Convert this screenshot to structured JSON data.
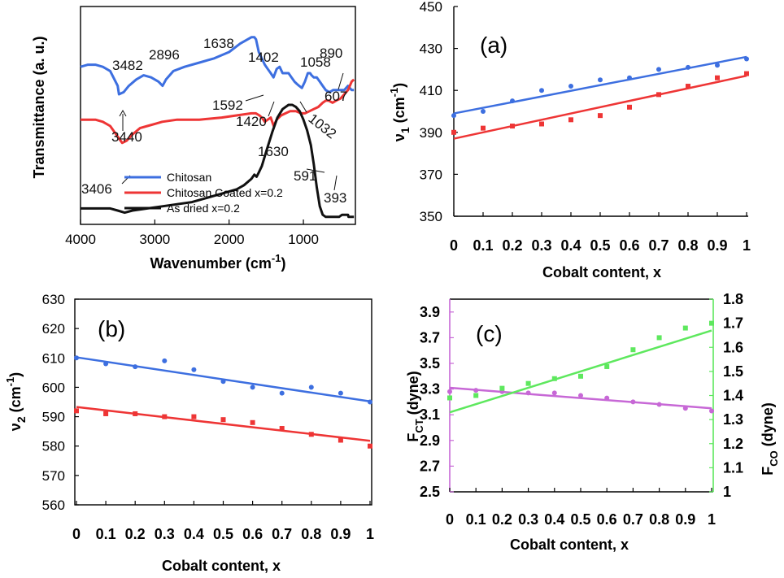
{
  "chart_data": [
    {
      "id": "ftir",
      "type": "line",
      "xlabel": "Wavenumber (cm",
      "xlabel_sup": "-1",
      "xlabel_tail": ")",
      "ylabel": "Transmittance (a. u.)",
      "xlim": [
        4000,
        300
      ],
      "x_ticks": [
        "4000",
        "3000",
        "2000",
        "1000"
      ],
      "x_tick_values": [
        4000,
        3000,
        2000,
        1000
      ],
      "series": [
        {
          "name": "Chitosan",
          "color": "#3d6fe0",
          "x": [
            4000,
            3900,
            3800,
            3700,
            3600,
            3500,
            3482,
            3420,
            3350,
            3250,
            3150,
            3050,
            2950,
            2896,
            2850,
            2750,
            2600,
            2400,
            2200,
            2000,
            1850,
            1700,
            1660,
            1638,
            1600,
            1560,
            1520,
            1480,
            1440,
            1402,
            1360,
            1320,
            1280,
            1240,
            1200,
            1160,
            1120,
            1090,
            1058,
            1020,
            980,
            940,
            910,
            890,
            860,
            820,
            780,
            740,
            700,
            650,
            600,
            550,
            500,
            450,
            400,
            350,
            320
          ],
          "y": [
            73,
            74,
            74,
            73,
            71,
            64,
            60,
            61,
            64,
            67,
            69,
            68,
            66,
            64,
            67,
            71,
            73,
            75,
            77,
            80,
            84,
            87,
            87,
            86,
            80,
            77,
            74,
            72,
            70,
            68,
            72,
            73,
            70,
            70,
            70,
            68,
            66,
            65,
            64,
            63,
            66,
            70,
            70,
            69,
            68,
            68,
            66,
            64,
            62,
            61,
            62,
            62,
            62,
            62,
            64,
            62,
            62
          ]
        },
        {
          "name": "Chitosan Coated x=0.2",
          "color": "#ee3535",
          "x": [
            4000,
            3900,
            3800,
            3700,
            3600,
            3500,
            3440,
            3380,
            3300,
            3200,
            3100,
            3000,
            2900,
            2700,
            2400,
            2100,
            1900,
            1700,
            1640,
            1592,
            1560,
            1520,
            1480,
            1440,
            1420,
            1400,
            1360,
            1300,
            1240,
            1180,
            1100,
            1032,
            980,
            920,
            860,
            800,
            740,
            700,
            660,
            607,
            560,
            500,
            450,
            400,
            350,
            320
          ],
          "y": [
            48,
            48,
            48,
            47,
            45,
            40,
            37,
            38,
            41,
            44,
            45,
            46,
            47,
            48,
            48,
            49,
            50,
            51,
            51,
            50,
            49,
            47,
            48,
            49,
            47,
            45,
            48,
            50,
            51,
            52,
            52,
            51,
            51,
            52,
            53,
            54,
            56,
            57,
            57,
            56,
            57,
            58,
            60,
            62,
            66,
            67
          ]
        },
        {
          "name": "As dried x=0.2",
          "color": "#111111",
          "x": [
            4000,
            3800,
            3600,
            3500,
            3406,
            3300,
            3100,
            2900,
            2700,
            2500,
            2300,
            2100,
            1900,
            1800,
            1700,
            1660,
            1630,
            1600,
            1560,
            1500,
            1420,
            1350,
            1280,
            1200,
            1150,
            1100,
            1050,
            1000,
            950,
            900,
            860,
            820,
            780,
            740,
            700,
            660,
            620,
            591,
            560,
            520,
            480,
            440,
            400,
            393,
            370,
            340,
            320
          ],
          "y": [
            6,
            6,
            6,
            5,
            4,
            5,
            6,
            7,
            8,
            9,
            11,
            13,
            15,
            17,
            20,
            22,
            21,
            23,
            26,
            33,
            42,
            49,
            53,
            55,
            55,
            54,
            52,
            48,
            43,
            36,
            27,
            16,
            7,
            3,
            2,
            2,
            2,
            2,
            2,
            2,
            3,
            3,
            3,
            2,
            2,
            2,
            2
          ]
        }
      ],
      "annotations": [
        "3482",
        "2896",
        "1638",
        "1402",
        "1058",
        "890",
        "3440",
        "1592",
        "1420",
        "1032",
        "607",
        "1630",
        "3406",
        "591",
        "393"
      ],
      "legend": [
        "Chitosan",
        "Chitosan Coated x=0.2",
        "As dried x=0.2"
      ]
    },
    {
      "id": "a",
      "type": "scatter",
      "panel_label": "(a)",
      "xlabel": "Cobalt content, x",
      "ylabel_greek": "ν",
      "ylabel_sub": "1",
      "ylabel_unit": " (cm",
      "ylabel_sup": "-1",
      "ylabel_tail": ")",
      "ylim": [
        350,
        450
      ],
      "y_ticks": [
        "350",
        "370",
        "390",
        "410",
        "430",
        "450"
      ],
      "y_tick_values": [
        350,
        370,
        390,
        410,
        430,
        450
      ],
      "x_ticks": [
        "0",
        "0.1",
        "0.2",
        "0.3",
        "0.4",
        "0.5",
        "0.6",
        "0.7",
        "0.8",
        "0.9",
        "1"
      ],
      "x_tick_values": [
        0,
        0.1,
        0.2,
        0.3,
        0.4,
        0.5,
        0.6,
        0.7,
        0.8,
        0.9,
        1
      ],
      "x": [
        0,
        0.1,
        0.2,
        0.3,
        0.4,
        0.5,
        0.6,
        0.7,
        0.8,
        0.9,
        1
      ],
      "series": [
        {
          "color": "#3d6fe0",
          "marker": "circle",
          "values": [
            398,
            400,
            405,
            410,
            412,
            415,
            416,
            420,
            421,
            422,
            425
          ],
          "fit": [
            399,
            426
          ]
        },
        {
          "color": "#ee3535",
          "marker": "square",
          "values": [
            390,
            392,
            393,
            394,
            396,
            398,
            402,
            408,
            412,
            416,
            418
          ],
          "fit": [
            387,
            417
          ]
        }
      ]
    },
    {
      "id": "b",
      "type": "scatter",
      "panel_label": "(b)",
      "xlabel": "Cobalt content, x",
      "ylabel_greek": "ν",
      "ylabel_sub": "2",
      "ylabel_unit": " (cm",
      "ylabel_sup": "-1",
      "ylabel_tail": ")",
      "ylim": [
        560,
        630
      ],
      "y_ticks": [
        "560",
        "570",
        "580",
        "590",
        "600",
        "610",
        "620",
        "630"
      ],
      "y_tick_values": [
        560,
        570,
        580,
        590,
        600,
        610,
        620,
        630
      ],
      "x_ticks": [
        "0",
        "0.1",
        "0.2",
        "0.3",
        "0.4",
        "0.5",
        "0.6",
        "0.7",
        "0.8",
        "0.9",
        "1"
      ],
      "x_tick_values": [
        0,
        0.1,
        0.2,
        0.3,
        0.4,
        0.5,
        0.6,
        0.7,
        0.8,
        0.9,
        1
      ],
      "x": [
        0,
        0.1,
        0.2,
        0.3,
        0.4,
        0.5,
        0.6,
        0.7,
        0.8,
        0.9,
        1
      ],
      "series": [
        {
          "color": "#3d6fe0",
          "marker": "circle",
          "values": [
            610,
            608,
            607,
            609,
            606,
            602,
            600,
            598,
            600,
            598,
            595
          ],
          "fit": [
            610.2,
            595.2
          ]
        },
        {
          "color": "#ee3535",
          "marker": "square",
          "values": [
            592,
            591,
            591,
            590,
            590,
            589,
            588,
            586,
            584,
            582,
            580
          ],
          "fit": [
            593.3,
            581.8
          ]
        }
      ]
    },
    {
      "id": "c",
      "type": "scatter",
      "panel_label": "(c)",
      "xlabel": "Cobalt content, x",
      "left_axis": {
        "label": "F",
        "label_sub": "CT",
        "label_tail": " (dyne)",
        "color": "#c768d6",
        "ylim": [
          2.5,
          4.0
        ],
        "ticks": [
          "2.5",
          "2.7",
          "2.9",
          "3.1",
          "3.3",
          "3.5",
          "3.7",
          "3.9"
        ],
        "tick_values": [
          2.5,
          2.7,
          2.9,
          3.1,
          3.3,
          3.5,
          3.7,
          3.9
        ]
      },
      "right_axis": {
        "label": "F",
        "label_sub": "CO",
        "label_tail": " (dyne)",
        "color": "#5ee85e",
        "ylim": [
          1.0,
          1.8
        ],
        "ticks": [
          "1",
          "1.1",
          "1.2",
          "1.3",
          "1.4",
          "1.5",
          "1.6",
          "1.7",
          "1.8"
        ],
        "tick_values": [
          1.0,
          1.1,
          1.2,
          1.3,
          1.4,
          1.5,
          1.6,
          1.7,
          1.8
        ]
      },
      "x_ticks": [
        "0",
        "0.1",
        "0.2",
        "0.3",
        "0.4",
        "0.5",
        "0.6",
        "0.7",
        "0.8",
        "0.9",
        "1"
      ],
      "x_tick_values": [
        0,
        0.1,
        0.2,
        0.3,
        0.4,
        0.5,
        0.6,
        0.7,
        0.8,
        0.9,
        1
      ],
      "x": [
        0,
        0.1,
        0.2,
        0.3,
        0.4,
        0.5,
        0.6,
        0.7,
        0.8,
        0.9,
        1
      ],
      "series": [
        {
          "axis": "left",
          "color": "#c768d6",
          "marker": "circle",
          "values": [
            3.28,
            3.29,
            3.28,
            3.27,
            3.27,
            3.25,
            3.23,
            3.2,
            3.18,
            3.15,
            3.13
          ],
          "fit": [
            3.31,
            3.15
          ]
        },
        {
          "axis": "right",
          "color": "#5ee85e",
          "marker": "square",
          "values": [
            1.39,
            1.4,
            1.43,
            1.45,
            1.47,
            1.48,
            1.52,
            1.59,
            1.64,
            1.68,
            1.7
          ],
          "fit": [
            1.33,
            1.67
          ]
        }
      ]
    }
  ]
}
